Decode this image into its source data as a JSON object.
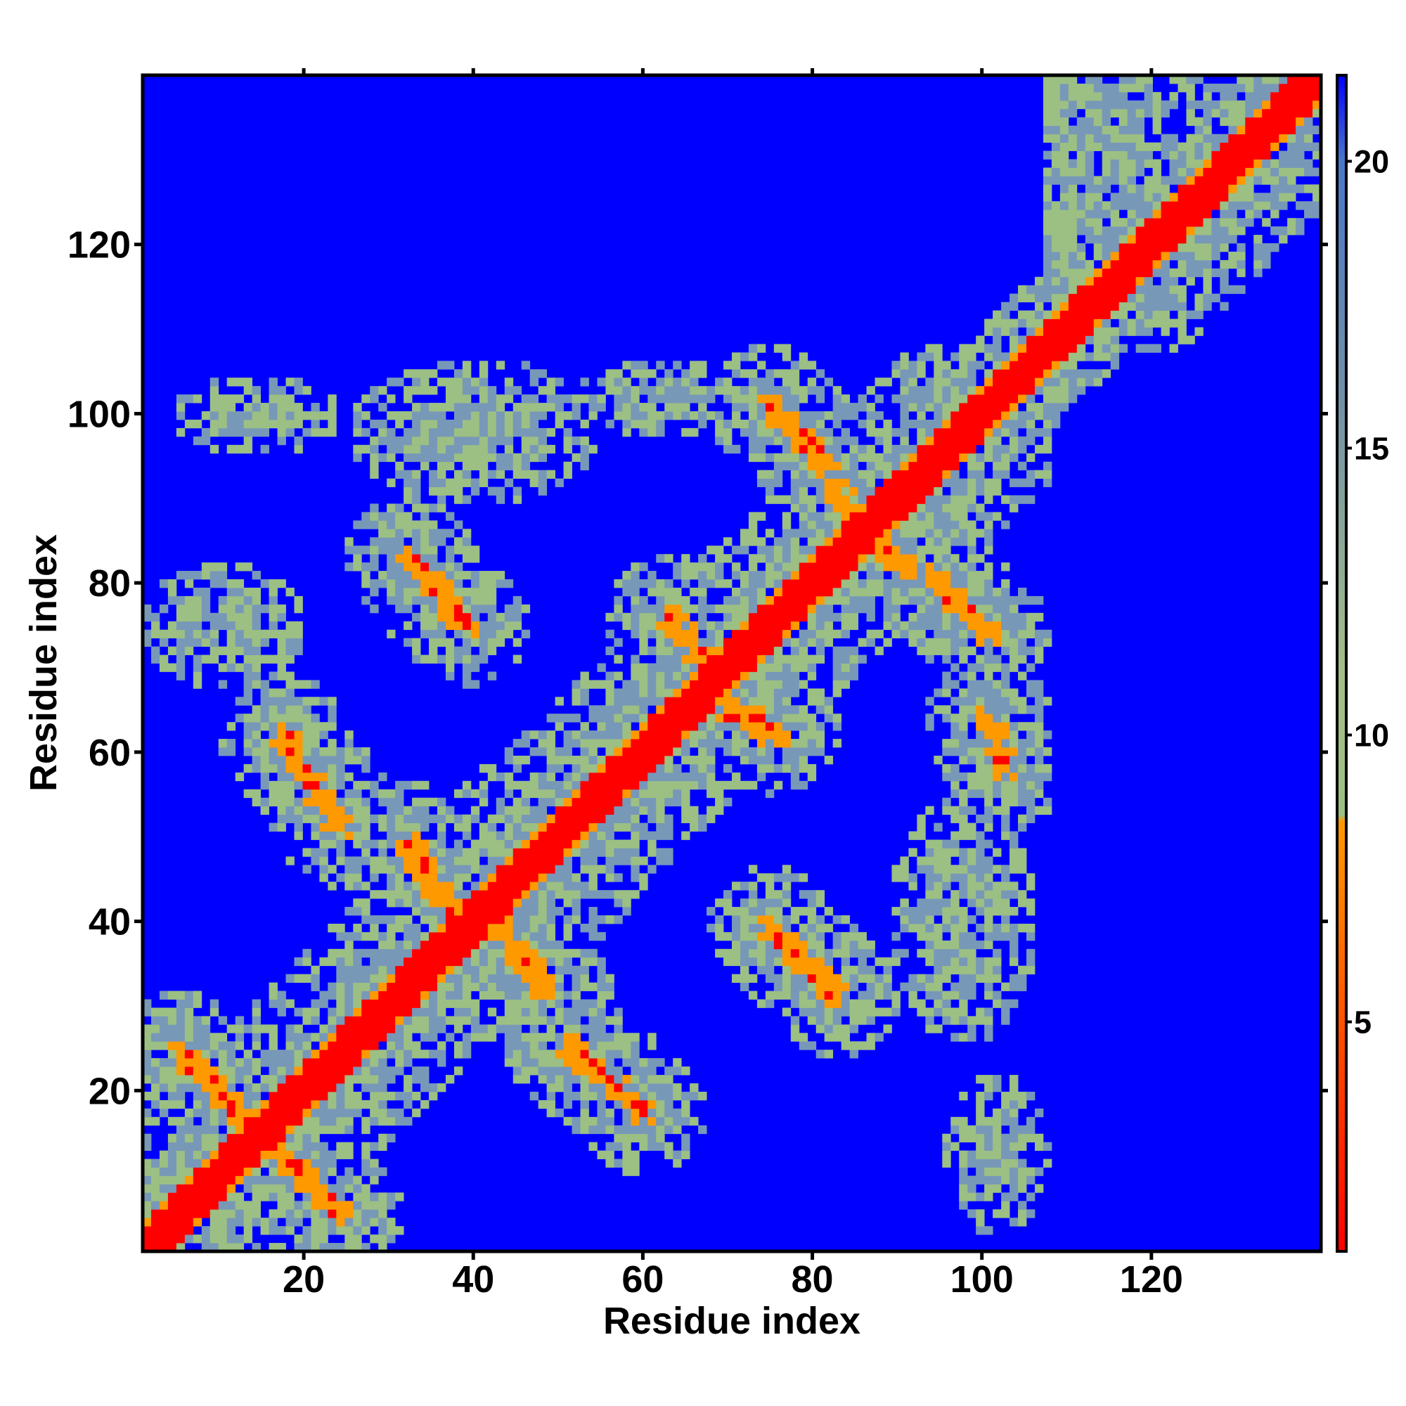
{
  "chart_data": {
    "type": "heatmap",
    "title": "",
    "xlabel": "Residue index",
    "ylabel": "Residue index",
    "xlim": [
      1,
      140
    ],
    "ylim": [
      1,
      140
    ],
    "n_residues": 140,
    "x_ticks": [
      20,
      40,
      60,
      80,
      100,
      120
    ],
    "y_ticks": [
      20,
      40,
      60,
      80,
      100,
      120
    ],
    "colorbar": {
      "ticks": [
        5,
        10,
        15,
        20
      ],
      "range": [
        1,
        21.5
      ],
      "stops": [
        {
          "value": 1,
          "color": "#ff0000"
        },
        {
          "value": 8.5,
          "color": "#ff9900"
        },
        {
          "value": 8.6,
          "color": "#9cc080"
        },
        {
          "value": 11,
          "color": "#a4bf86"
        },
        {
          "value": 16,
          "color": "#6f8fa9"
        },
        {
          "value": 20,
          "color": "#4878c8"
        },
        {
          "value": 21.5,
          "color": "#0000ff"
        }
      ]
    },
    "background_color": "#0000ff",
    "band_colors": {
      "contact": "#ff0000",
      "close": "#ff9900",
      "mid": "#9cbf84",
      "far": "#7898b8"
    },
    "contact_segments": [
      {
        "from": [
          5,
          24
        ],
        "to": [
          24,
          5
        ]
      },
      {
        "from": [
          17,
          62
        ],
        "to": [
          24,
          51
        ]
      },
      {
        "from": [
          32,
          83
        ],
        "to": [
          39,
          75
        ]
      },
      {
        "from": [
          32,
          49
        ],
        "to": [
          38,
          40
        ]
      },
      {
        "from": [
          42,
          40
        ],
        "to": [
          49,
          31
        ]
      },
      {
        "from": [
          51,
          25
        ],
        "to": [
          60,
          17
        ]
      },
      {
        "from": [
          75,
          101
        ],
        "to": [
          82,
          94
        ]
      },
      {
        "from": [
          82,
          92
        ],
        "to": [
          86,
          87
        ]
      },
      {
        "from": [
          88,
          85
        ],
        "to": [
          92,
          81
        ]
      },
      {
        "from": [
          94,
          81
        ],
        "to": [
          101,
          74
        ]
      },
      {
        "from": [
          75,
          39
        ],
        "to": [
          83,
          31
        ]
      },
      {
        "from": [
          63,
          76
        ],
        "to": [
          67,
          71
        ]
      },
      {
        "from": [
          70,
          65
        ],
        "to": [
          76,
          62
        ]
      },
      {
        "from": [
          101,
          64
        ],
        "to": [
          103,
          58
        ]
      }
    ],
    "sheet_regions": [
      {
        "cx": 113,
        "cy": 133,
        "rx": 10,
        "ry": 30
      },
      {
        "cx": 14,
        "cy": 100,
        "rx": 8,
        "ry": 4
      },
      {
        "cx": 40,
        "cy": 98,
        "rx": 12,
        "ry": 7
      },
      {
        "cx": 62,
        "cy": 102,
        "rx": 8,
        "ry": 4
      },
      {
        "cx": 98,
        "cy": 40,
        "rx": 7,
        "ry": 12
      },
      {
        "cx": 10,
        "cy": 75,
        "rx": 8,
        "ry": 6
      },
      {
        "cx": 102,
        "cy": 12,
        "rx": 5,
        "ry": 8
      },
      {
        "cx": 48,
        "cy": 48,
        "rx": 10,
        "ry": 10
      }
    ]
  }
}
